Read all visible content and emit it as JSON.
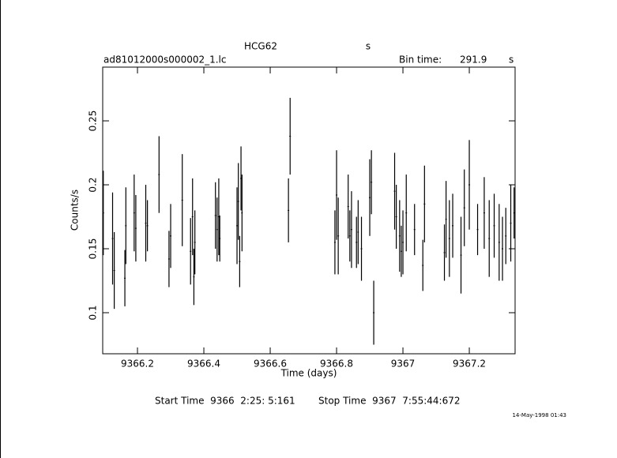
{
  "chart_data": {
    "type": "errorbar",
    "title": "HCG62",
    "title_unit": "s",
    "file_name": "ad81012000s000002_1.lc",
    "bin_time_label": "Bin time:",
    "bin_time": 291.9,
    "bin_time_unit": "s",
    "xlabel": "Time (days)",
    "ylabel": "Counts/s",
    "start_time": "Start Time  9366  2:25: 5:161",
    "stop_time": "Stop Time  9367  7:55:44:672",
    "date_stamp": "14-May-1998 01:43",
    "color": "#000000",
    "xlim": [
      9366.0952,
      9367.338
    ],
    "ylim": [
      0.0679,
      0.292
    ],
    "xticks": [
      9366.2,
      9366.4,
      9366.6,
      9366.8,
      9367,
      9367.2
    ],
    "yticks": [
      0.1,
      0.15,
      0.2,
      0.25
    ],
    "x": [
      9366.097,
      9366.125,
      9366.13,
      9366.162,
      9366.165,
      9366.19,
      9366.195,
      9366.225,
      9366.23,
      9366.265,
      9366.295,
      9366.3,
      9366.335,
      9366.36,
      9366.366,
      9366.37,
      9366.373,
      9366.435,
      9366.44,
      9366.445,
      9366.448,
      9366.5,
      9366.504,
      9366.508,
      9366.512,
      9366.515,
      9366.655,
      9366.66,
      9366.795,
      9366.8,
      9366.805,
      9366.835,
      9366.84,
      9366.845,
      9366.86,
      9366.865,
      9366.875,
      9366.9,
      9366.905,
      9366.912,
      9366.975,
      9366.98,
      9366.99,
      9366.995,
      9367.0,
      9367.01,
      9367.035,
      9367.06,
      9367.065,
      9367.125,
      9367.13,
      9367.14,
      9367.15,
      9367.175,
      9367.185,
      9367.2,
      9367.225,
      9367.245,
      9367.26,
      9367.275,
      9367.29,
      9367.3,
      9367.31,
      9367.325,
      9367.335
    ],
    "values": [
      0.178,
      0.158,
      0.133,
      0.127,
      0.168,
      0.178,
      0.166,
      0.17,
      0.168,
      0.208,
      0.142,
      0.16,
      0.188,
      0.148,
      0.175,
      0.128,
      0.155,
      0.176,
      0.165,
      0.175,
      0.158,
      0.168,
      0.187,
      0.14,
      0.205,
      0.178,
      0.18,
      0.238,
      0.155,
      0.192,
      0.16,
      0.183,
      0.16,
      0.165,
      0.155,
      0.163,
      0.15,
      0.19,
      0.202,
      0.1,
      0.195,
      0.175,
      0.16,
      0.148,
      0.155,
      0.178,
      0.165,
      0.137,
      0.185,
      0.147,
      0.173,
      0.158,
      0.168,
      0.145,
      0.182,
      0.2,
      0.165,
      0.178,
      0.158,
      0.168,
      0.155,
      0.15,
      0.16,
      0.17,
      0.178
    ],
    "errors": [
      0.033,
      0.036,
      0.03,
      0.022,
      0.03,
      0.03,
      0.026,
      0.03,
      0.02,
      0.03,
      0.022,
      0.025,
      0.036,
      0.026,
      0.03,
      0.022,
      0.025,
      0.026,
      0.025,
      0.03,
      0.018,
      0.03,
      0.03,
      0.02,
      0.025,
      0.03,
      0.025,
      0.03,
      0.025,
      0.035,
      0.03,
      0.025,
      0.02,
      0.03,
      0.02,
      0.025,
      0.025,
      0.03,
      0.025,
      0.025,
      0.03,
      0.025,
      0.028,
      0.02,
      0.025,
      0.03,
      0.02,
      0.02,
      0.03,
      0.022,
      0.03,
      0.03,
      0.025,
      0.03,
      0.03,
      0.035,
      0.02,
      0.028,
      0.03,
      0.025,
      0.03,
      0.025,
      0.022,
      0.03,
      0.02
    ]
  }
}
